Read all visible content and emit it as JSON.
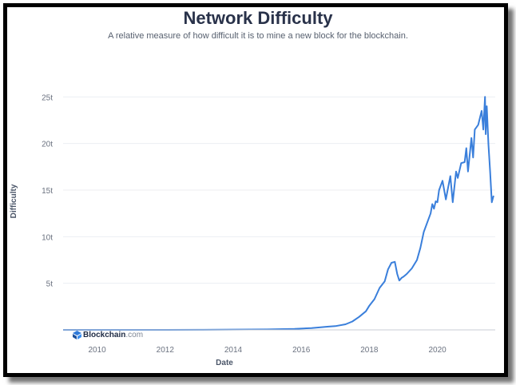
{
  "chart_data": {
    "type": "line",
    "title": "Network Difficulty",
    "subtitle": "A relative measure of how difficult it is to mine a new block for the blockchain.",
    "xlabel": "Date",
    "ylabel": "Difficulty",
    "x_tick_labels": [
      "2010",
      "2012",
      "2014",
      "2016",
      "2018",
      "2020"
    ],
    "y_tick_labels": [
      "5t",
      "10t",
      "15t",
      "20t",
      "25t"
    ],
    "xlim": [
      2009.0,
      2021.7
    ],
    "ylim": [
      0,
      27
    ],
    "grid": true,
    "line_color": "#3a7fdb",
    "series": [
      {
        "x": [
          2009.0,
          2010.0,
          2011.0,
          2012.0,
          2013.0,
          2014.0,
          2015.0,
          2015.8,
          2016.3,
          2016.8,
          2017.0,
          2017.3,
          2017.5,
          2017.7,
          2017.9,
          2018.0,
          2018.15,
          2018.3,
          2018.45,
          2018.55,
          2018.65,
          2018.75,
          2018.82,
          2018.88,
          2018.95,
          2019.0,
          2019.1,
          2019.25,
          2019.4,
          2019.5,
          2019.6,
          2019.7,
          2019.8,
          2019.85,
          2019.9,
          2019.95,
          2020.0,
          2020.05,
          2020.15,
          2020.25,
          2020.3,
          2020.38,
          2020.45,
          2020.55,
          2020.6,
          2020.7,
          2020.8,
          2020.85,
          2020.9,
          2021.0,
          2021.05,
          2021.1,
          2021.2,
          2021.3,
          2021.35,
          2021.4,
          2021.42,
          2021.45,
          2021.5,
          2021.55,
          2021.6,
          2021.65
        ],
        "y": [
          0,
          1e-05,
          0.001,
          0.002,
          0.01,
          0.03,
          0.05,
          0.1,
          0.2,
          0.35,
          0.4,
          0.6,
          0.9,
          1.4,
          2.0,
          2.6,
          3.3,
          4.5,
          5.2,
          6.5,
          7.2,
          7.3,
          6.0,
          5.3,
          5.6,
          5.7,
          6.0,
          6.6,
          7.5,
          8.8,
          10.5,
          11.5,
          12.5,
          13.5,
          13.0,
          13.8,
          13.7,
          15.0,
          16.0,
          14.0,
          15.0,
          16.5,
          13.7,
          17.0,
          16.3,
          17.9,
          18.0,
          19.5,
          17.0,
          20.6,
          18.5,
          21.5,
          22.0,
          23.5,
          21.5,
          25.0,
          21.0,
          24.0,
          19.9,
          17.0,
          13.7,
          14.4
        ]
      }
    ]
  }
}
